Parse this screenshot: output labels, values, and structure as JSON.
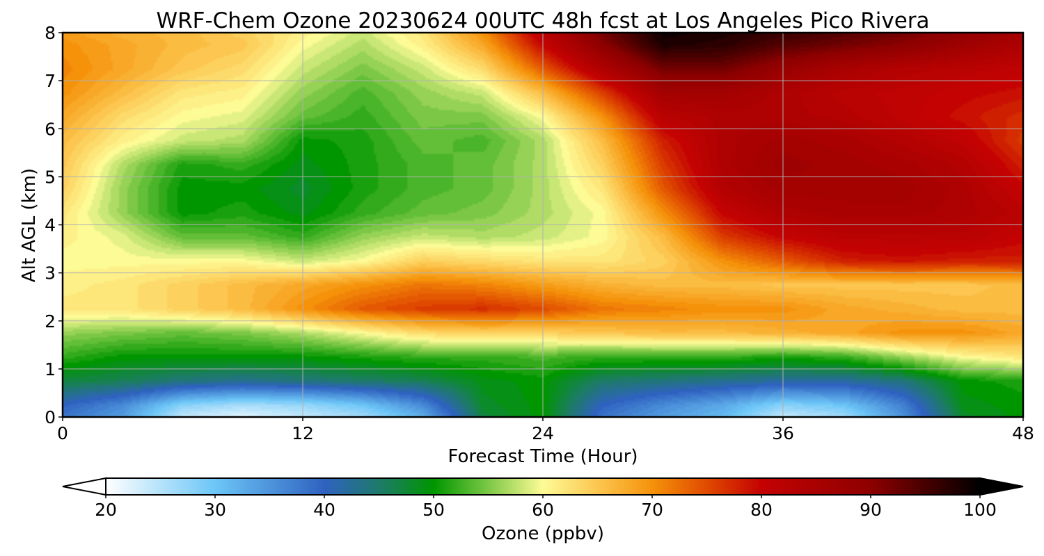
{
  "chart_data": {
    "type": "heatmap",
    "title": "WRF-Chem Ozone  20230624 00UTC 48h fcst at Los Angeles Pico Rivera",
    "xlabel": "Forecast Time (Hour)",
    "ylabel": "Alt AGL (km)",
    "xlim": [
      0,
      48
    ],
    "ylim": [
      0,
      8
    ],
    "x_ticks": [
      0,
      12,
      24,
      36,
      48
    ],
    "y_ticks": [
      0,
      1,
      2,
      3,
      4,
      5,
      6,
      7,
      8
    ],
    "grid": true,
    "x": [
      0,
      3,
      6,
      9,
      12,
      15,
      18,
      21,
      24,
      27,
      30,
      33,
      36,
      39,
      42,
      45,
      48
    ],
    "y": [
      0,
      0.25,
      0.75,
      1.25,
      1.75,
      2.25,
      2.75,
      3.25,
      3.75,
      4.25,
      4.75,
      5.25,
      5.75,
      6.25,
      6.75,
      7.25,
      7.75,
      8
    ],
    "z": [
      [
        38,
        34,
        24,
        22,
        24,
        26,
        32,
        47,
        50,
        38,
        34,
        31,
        24,
        26,
        35,
        48,
        50
      ],
      [
        40,
        36,
        28,
        26,
        27,
        30,
        36,
        48,
        50,
        40,
        36,
        33,
        28,
        30,
        37,
        49,
        50
      ],
      [
        47,
        46,
        44,
        43,
        44,
        45,
        46,
        49,
        50,
        45,
        44,
        43,
        42,
        42,
        44,
        50,
        51
      ],
      [
        52,
        50,
        50,
        50,
        50,
        51,
        52,
        52,
        53,
        52,
        52,
        52,
        51,
        52,
        56,
        60,
        62
      ],
      [
        56,
        55,
        54,
        55,
        57,
        60,
        63,
        64,
        64,
        65,
        66,
        66,
        67,
        68,
        70,
        70,
        68
      ],
      [
        62,
        62,
        64,
        66,
        70,
        74,
        76,
        77,
        75,
        72,
        71,
        70,
        70,
        68,
        67,
        66,
        66
      ],
      [
        61,
        62,
        64,
        66,
        68,
        70,
        72,
        71,
        69,
        67,
        66,
        66,
        65,
        65,
        65,
        65,
        66
      ],
      [
        60,
        60,
        60,
        60,
        58,
        60,
        64,
        63,
        62,
        62,
        64,
        70,
        74,
        78,
        79,
        78,
        78
      ],
      [
        61,
        59,
        54,
        54,
        52,
        56,
        58,
        57,
        58,
        60,
        66,
        76,
        80,
        82,
        82,
        82,
        80
      ],
      [
        62,
        56,
        50,
        51,
        49,
        52,
        54,
        55,
        57,
        60,
        70,
        80,
        84,
        85,
        85,
        84,
        82
      ],
      [
        64,
        56,
        50,
        50,
        48,
        51,
        53,
        54,
        57,
        62,
        74,
        83,
        86,
        86,
        86,
        84,
        80
      ],
      [
        65,
        57,
        51,
        52,
        49,
        51,
        53,
        54,
        57,
        64,
        76,
        84,
        87,
        86,
        85,
        83,
        78
      ],
      [
        66,
        61,
        58,
        57,
        50,
        51,
        54,
        53,
        57,
        66,
        78,
        84,
        86,
        85,
        83,
        81,
        76
      ],
      [
        68,
        63,
        60,
        59,
        54,
        52,
        55,
        55,
        60,
        70,
        82,
        84,
        84,
        83,
        81,
        79,
        77
      ],
      [
        70,
        66,
        62,
        61,
        56,
        53,
        56,
        58,
        66,
        76,
        86,
        86,
        84,
        82,
        81,
        80,
        79
      ],
      [
        71,
        68,
        65,
        63,
        58,
        55,
        58,
        63,
        74,
        84,
        92,
        92,
        88,
        85,
        83,
        82,
        81
      ],
      [
        70,
        68,
        66,
        65,
        60,
        57,
        61,
        68,
        80,
        90,
        98,
        97,
        94,
        92,
        90,
        87,
        84
      ],
      [
        69,
        67,
        66,
        64,
        61,
        58,
        62,
        70,
        82,
        92,
        99,
        98,
        96,
        94,
        92,
        89,
        86
      ]
    ],
    "colorbar": {
      "label": "Ozone  (ppbv)",
      "min": 20,
      "max": 100,
      "ticks": [
        20,
        30,
        40,
        50,
        60,
        70,
        80,
        90,
        100
      ],
      "extend": "both",
      "colorscale": [
        [
          20,
          "#ffffff"
        ],
        [
          30,
          "#6cc6f7"
        ],
        [
          40,
          "#2f62c0"
        ],
        [
          45,
          "#1e7a6a"
        ],
        [
          50,
          "#009600"
        ],
        [
          55,
          "#7cc846"
        ],
        [
          60,
          "#fdfb96"
        ],
        [
          65,
          "#fcc650"
        ],
        [
          70,
          "#f5920a"
        ],
        [
          75,
          "#e04a00"
        ],
        [
          80,
          "#c40202"
        ],
        [
          90,
          "#8e0000"
        ],
        [
          100,
          "#000000"
        ]
      ]
    }
  }
}
